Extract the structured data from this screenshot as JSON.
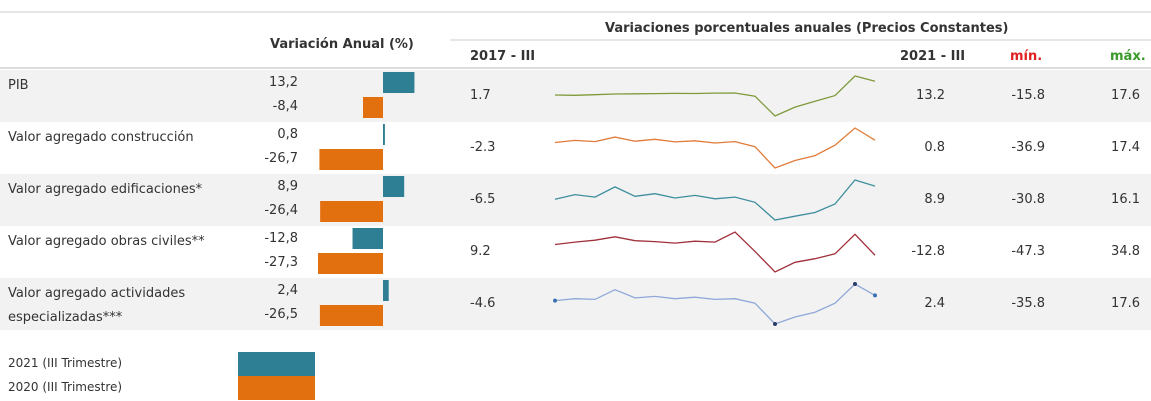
{
  "header": {
    "left_title": "Variación Anual (%)",
    "right_title": "Variaciones porcentuales anuales  (Precios Constantes)",
    "start_col": "2017 - III",
    "end_col": "2021 - III",
    "min_col": "mín.",
    "max_col": "máx.",
    "min_color": "#e02020",
    "max_color": "#3a9a2a"
  },
  "bar_colors": {
    "y2021": "#2e7f93",
    "y2020": "#e3700f"
  },
  "rows": [
    {
      "label": "PIB",
      "y2021": {
        "value": 13.2,
        "label": "13,2"
      },
      "y2020": {
        "value": -8.4,
        "label": "-8,4"
      },
      "start": 1.7,
      "end": 13.2,
      "min": -15.8,
      "max": 17.6,
      "color": "#7f9a3a",
      "markers": false,
      "series": [
        1.7,
        1.5,
        2.0,
        2.6,
        2.7,
        2.9,
        3.1,
        3.0,
        3.3,
        3.4,
        0.7,
        -15.8,
        -8.4,
        -3.5,
        1.2,
        17.6,
        13.2
      ]
    },
    {
      "label": "Valor agregado construcción",
      "y2021": {
        "value": 0.8,
        "label": "0,8"
      },
      "y2020": {
        "value": -26.7,
        "label": "-26,7"
      },
      "start": -2.3,
      "end": 0.8,
      "min": -36.9,
      "max": 17.4,
      "color": "#e07b39",
      "markers": false,
      "series": [
        -2.3,
        0.5,
        -1.0,
        5.0,
        -0.5,
        2.0,
        -1.5,
        0.0,
        -3.0,
        -1.0,
        -8.0,
        -36.9,
        -26.7,
        -20.0,
        -6.0,
        17.4,
        0.8
      ]
    },
    {
      "label": "Valor agregado edificaciones*",
      "y2021": {
        "value": 8.9,
        "label": "8,9"
      },
      "y2020": {
        "value": -26.4,
        "label": "-26,4"
      },
      "start": -6.5,
      "end": 8.9,
      "min": -30.8,
      "max": 16.1,
      "color": "#3e8e9e",
      "markers": false,
      "series": [
        -6.5,
        -1.0,
        -4.0,
        8.0,
        -3.0,
        0.0,
        -5.0,
        -2.0,
        -6.0,
        -4.0,
        -10.0,
        -30.8,
        -26.4,
        -22.0,
        -12.0,
        16.1,
        8.9
      ]
    },
    {
      "label": "Valor agregado obras civiles**",
      "y2021": {
        "value": -12.8,
        "label": "-12,8"
      },
      "y2020": {
        "value": -27.3,
        "label": "-27,3"
      },
      "start": 9.2,
      "end": -12.8,
      "min": -47.3,
      "max": 34.8,
      "color": "#a0303a",
      "markers": false,
      "series": [
        9.2,
        14.0,
        18.0,
        25.0,
        17.0,
        15.0,
        12.0,
        16.0,
        14.0,
        34.8,
        -5.0,
        -47.3,
        -27.3,
        -20.0,
        -10.0,
        30.0,
        -12.8
      ]
    },
    {
      "label": "Valor agregado actividades especializadas***",
      "y2021": {
        "value": 2.4,
        "label": "2,4"
      },
      "y2020": {
        "value": -26.5,
        "label": "-26,5"
      },
      "start": -4.6,
      "end": 2.4,
      "min": -35.8,
      "max": 17.6,
      "color": "#8fa8d8",
      "markers": true,
      "series": [
        -4.6,
        -2.0,
        -3.0,
        10.0,
        -1.0,
        1.0,
        -2.0,
        0.0,
        -3.0,
        -2.0,
        -8.0,
        -35.8,
        -26.5,
        -20.0,
        -8.0,
        17.6,
        2.4
      ]
    }
  ],
  "legend": [
    {
      "key": "y2021",
      "label": "2021 (III Trimestre)"
    },
    {
      "key": "y2020",
      "label": "2020 (III Trimestre)"
    }
  ]
}
